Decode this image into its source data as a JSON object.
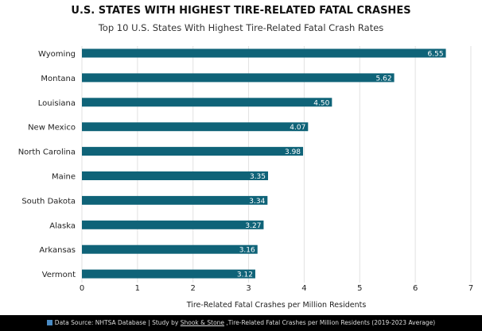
{
  "chart_data": {
    "type": "bar",
    "orientation": "horizontal",
    "title": "U.S. STATES WITH HIGHEST TIRE-RELATED FATAL CRASHES",
    "subtitle": "Top 10 U.S. States With Highest Tire-Related Fatal Crash Rates",
    "categories": [
      "Wyoming",
      "Montana",
      "Louisiana",
      "New Mexico",
      "North Carolina",
      "Maine",
      "South Dakota",
      "Alaska",
      "Arkansas",
      "Vermont"
    ],
    "values": [
      6.55,
      5.62,
      4.5,
      4.07,
      3.98,
      3.35,
      3.34,
      3.27,
      3.16,
      3.12
    ],
    "value_labels": [
      "6.55",
      "5.62",
      "4.50",
      "4.07",
      "3.98",
      "3.35",
      "3.34",
      "3.27",
      "3.16",
      "3.12"
    ],
    "xlabel": "Tire-Related Fatal Crashes per Million Residents",
    "ylabel": "",
    "xlim": [
      0,
      7
    ],
    "xticks": [
      "0",
      "1",
      "2",
      "3",
      "4",
      "5",
      "6",
      "7"
    ],
    "grid": "vertical",
    "bar_color": "#0f6378"
  },
  "footer": {
    "prefix": "Data Source: NHTSA Database | Study by ",
    "link": "Shook & Stone",
    "suffix": " ,Tire-Related Fatal Crashes per Million Residents (2019-2023 Average)"
  }
}
